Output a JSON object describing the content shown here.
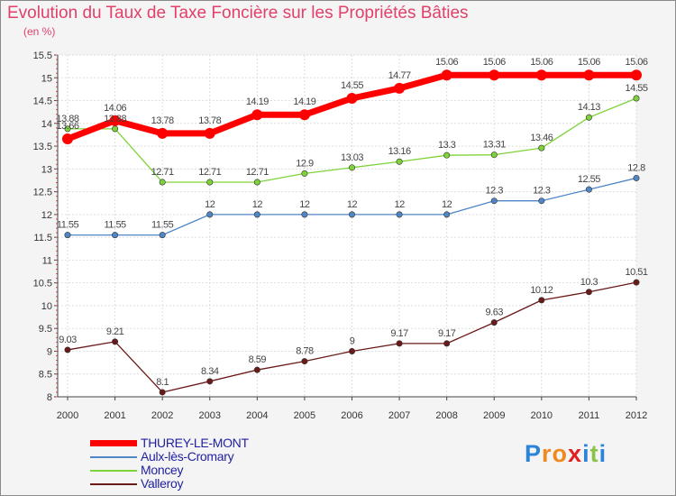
{
  "title": "Evolution du Taux de Taxe Foncière sur les Propriétés Bâties",
  "subtitle": "(en %)",
  "logo": {
    "text": "Proxiti",
    "letters": [
      "P",
      "r",
      "o",
      "x",
      "i",
      "t",
      "i"
    ],
    "colors": [
      "#2b84d8",
      "#f08a1e",
      "#f08a1e",
      "#e02020",
      "#2b84d8",
      "#8bc34a",
      "#2b84d8"
    ]
  },
  "chart_data": {
    "type": "line",
    "title": "Evolution du Taux de Taxe Foncière sur les Propriétés Bâties",
    "ylabel": "(en %)",
    "xlabel": "",
    "ylim": [
      8,
      15.5
    ],
    "yticks": [
      "8",
      "8.5",
      "9",
      "9.5",
      "10",
      "10.5",
      "11",
      "11.5",
      "12",
      "12.5",
      "13",
      "13.5",
      "14",
      "14.5",
      "15",
      "15.5"
    ],
    "x": [
      "2000",
      "2001",
      "2002",
      "2003",
      "2004",
      "2005",
      "2006",
      "2007",
      "2008",
      "2009",
      "2010",
      "2011",
      "2012"
    ],
    "grid": true,
    "legend_position": "bottom-left",
    "series": [
      {
        "name": "THUREY-LE-MONT",
        "color": "#ff0000",
        "width": 7,
        "marker": 6,
        "values": [
          13.66,
          14.06,
          13.78,
          13.78,
          14.19,
          14.19,
          14.55,
          14.77,
          15.06,
          15.06,
          15.06,
          15.06,
          15.06
        ],
        "labels": [
          "13.66",
          "14.06",
          "13.78",
          "13.78",
          "14.19",
          "14.19",
          "14.55",
          "14.77",
          "15.06",
          "15.06",
          "15.06",
          "15.06",
          "15.06"
        ]
      },
      {
        "name": "Aulx-lès-Cromary",
        "color": "#4f86c6",
        "width": 1.3,
        "marker": 3.2,
        "values": [
          11.55,
          11.55,
          11.55,
          12,
          12,
          12,
          12,
          12,
          12,
          12.3,
          12.3,
          12.55,
          12.8
        ],
        "labels": [
          "11.55",
          "11.55",
          "11.55",
          "12",
          "12",
          "12",
          "12",
          "12",
          "12",
          "12.3",
          "12.3",
          "12.55",
          "12.8"
        ]
      },
      {
        "name": "Moncey",
        "color": "#7fd33a",
        "width": 1.3,
        "marker": 3.2,
        "values": [
          13.88,
          13.88,
          12.71,
          12.71,
          12.71,
          12.9,
          13.03,
          13.16,
          13.3,
          13.31,
          13.46,
          14.13,
          14.55
        ],
        "labels": [
          "13.88",
          "13.88",
          "12.71",
          "12.71",
          "12.71",
          "12.9",
          "13.03",
          "13.16",
          "13.3",
          "13.31",
          "13.46",
          "14.13",
          "14.55"
        ]
      },
      {
        "name": "Valleroy",
        "color": "#6b1a1a",
        "width": 1.3,
        "marker": 3.2,
        "values": [
          9.03,
          9.21,
          8.1,
          8.34,
          8.59,
          8.78,
          9,
          9.17,
          9.17,
          9.63,
          10.12,
          10.3,
          10.51
        ],
        "labels": [
          "9.03",
          "9.21",
          "8.1",
          "8.34",
          "8.59",
          "8.78",
          "9",
          "9.17",
          "9.17",
          "9.63",
          "10.12",
          "10.3",
          "10.51"
        ]
      }
    ]
  }
}
